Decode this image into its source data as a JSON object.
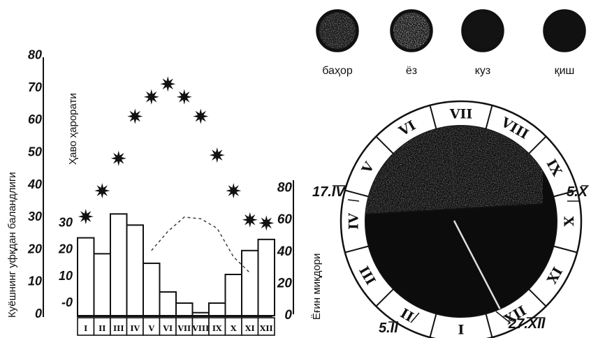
{
  "chart_data": [
    {
      "type": "bar",
      "categories": [
        "I",
        "II",
        "III",
        "IV",
        "V",
        "VI",
        "VII",
        "VIII",
        "IX",
        "X",
        "XI",
        "XII"
      ],
      "series": [
        {
          "name": "",
          "kind": "bar",
          "axis": "precipitation",
          "values": [
            48,
            38,
            63,
            56,
            32,
            14,
            7,
            1,
            7,
            25,
            40,
            47
          ]
        },
        {
          "name": "",
          "kind": "marker",
          "marker": "star",
          "axis": "sun_height",
          "values": [
            30,
            38,
            48,
            61,
            67,
            71,
            67,
            61,
            49,
            38,
            29,
            28
          ]
        },
        {
          "name": "",
          "kind": "dashed-line",
          "axis": "precipitation",
          "values": [
            null,
            null,
            null,
            null,
            40,
            52,
            61,
            60,
            54,
            36,
            26,
            null
          ]
        }
      ],
      "axes": {
        "sun_height": {
          "label": "Куёшнинг уфқдан баландлиги",
          "ticks": [
            "0",
            "10",
            "20",
            "30",
            "40",
            "50",
            "60",
            "70",
            "80"
          ],
          "ylim": [
            0,
            80
          ]
        },
        "temperature": {
          "label": "Ҳаво ҳарорати",
          "ticks": [
            "-0",
            "10",
            "20",
            "30"
          ],
          "ylim": [
            0,
            30
          ]
        },
        "precipitation": {
          "label": "Ёғин миқдори",
          "ticks": [
            "0",
            "20",
            "40",
            "60",
            "80"
          ],
          "ylim": [
            0,
            80
          ]
        }
      }
    }
  ],
  "seasons": [
    {
      "label": "баҳор",
      "fill": 0.55
    },
    {
      "label": "ёз",
      "fill": 0.2
    },
    {
      "label": "куз",
      "fill": 0.97
    },
    {
      "label": "қиш",
      "fill": 1.0
    }
  ],
  "dial": {
    "months": [
      "I",
      "II",
      "III",
      "IV",
      "V",
      "VI",
      "VII",
      "VIII",
      "IX",
      "X",
      "XI",
      "XII"
    ],
    "dates": {
      "spring": "17.IV",
      "autumn": "5.X",
      "winter_start": "27.XII",
      "winter_end": "5.II"
    }
  },
  "colors": {
    "ink": "#111111",
    "paper": "#ffffff",
    "grain": "#8a8a8a"
  }
}
